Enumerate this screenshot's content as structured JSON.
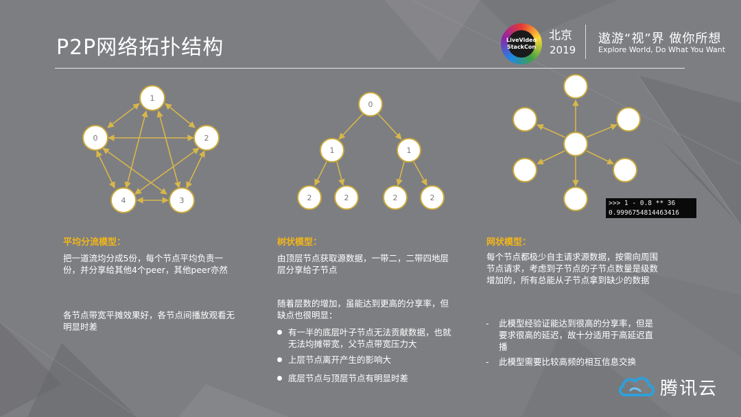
{
  "header": {
    "title": "P2P网络拓扑结构",
    "logo_text": "LiveVideo StackCon",
    "city": "北京",
    "year": "2019",
    "slogan_cn": "遨游“视”界 做你所想",
    "slogan_en": "Explore World, Do What You Want"
  },
  "diagram1": {
    "nodes": [
      "0",
      "1",
      "2",
      "3",
      "4"
    ]
  },
  "diagram2": {
    "nodes": [
      "0",
      "1",
      "1",
      "2",
      "2",
      "2",
      "2"
    ]
  },
  "code": {
    "line1": ">>> 1 - 0.8 ** 36",
    "line2": "0.9996754814463416"
  },
  "col1": {
    "heading": "平均分流模型：",
    "para1": "把一道流均分成5份，每个节点平均负责一份，并分享给其他4个peer，其他peer亦然",
    "para2": "各节点带宽平摊效果好，各节点间播放观看无明显时差"
  },
  "col2": {
    "heading": "树状模型：",
    "para1": "由顶层节点获取源数据，一带二，二带四地层层分享给子节点",
    "para2": "随着层数的增加，虽能达到更高的分享率，但缺点也很明显：",
    "bullets": [
      "有一半的底层叶子节点无法贡献数据，也就无法均摊带宽，父节点带宽压力大",
      "上层节点离开产生的影响大",
      "底层节点与顶层节点有明显时差"
    ]
  },
  "col3": {
    "heading": "网状模型：",
    "para1": "每个节点都极少自主请求源数据，按需向周围节点请求，考虑到子节点的子节点数量是级数增加的，所有总能从子节点拿到缺少的数据",
    "dash_items": [
      "此模型经验证能达到很高的分享率，但是要求很高的延迟，故十分适用于高延迟直播",
      "此模型需要比较高频的相互信息交换"
    ]
  },
  "footer": {
    "brand": "腾讯云"
  },
  "colors": {
    "background": "#7d7e82",
    "accent": "#f2b51a",
    "node_fill": "#ffffff",
    "node_stroke": "#c9a83a",
    "edge": "#d8b74a"
  }
}
